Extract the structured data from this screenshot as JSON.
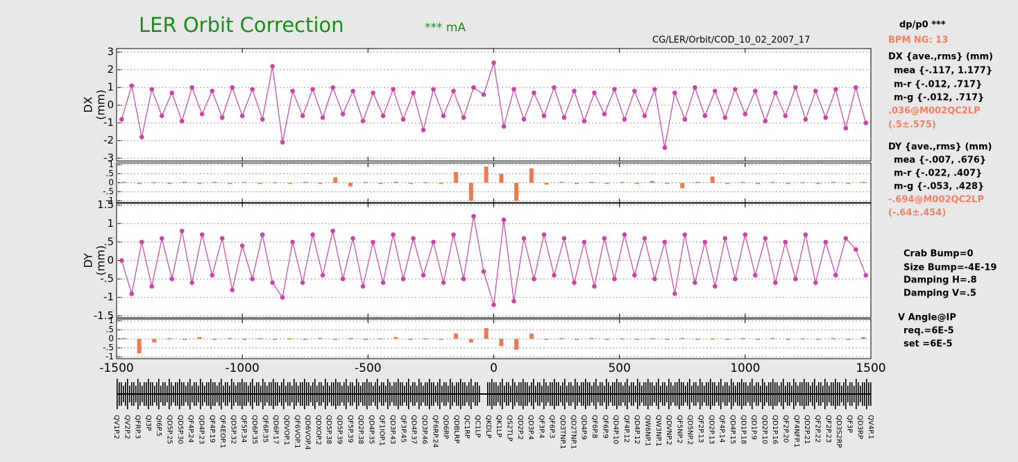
{
  "header": {
    "title": "LER Orbit Correction",
    "current": "*** mA",
    "file": "CG/LER/Orbit/COD_10_02_2007_17"
  },
  "side": [
    {
      "text": "dp/p0  ***",
      "color": "#000000"
    },
    {
      "text": "BPM  NG: 13",
      "color": "#f08060"
    },
    {
      "text": "DX {ave.,rms} (mm)",
      "color": "#000000"
    },
    {
      "text": "mea {-.117, 1.177}",
      "color": "#000000"
    },
    {
      "text": "m-r {-.012, .717}",
      "color": "#000000"
    },
    {
      "text": "m-g {-.012, .717}",
      "color": "#000000"
    },
    {
      "text": ".036@M002QC2LP",
      "color": "#f08060"
    },
    {
      "text": "(.5±.575)",
      "color": "#f08060"
    },
    {
      "text": "DY {ave.,rms} (mm)",
      "color": "#000000"
    },
    {
      "text": "mea {-.007, .676}",
      "color": "#000000"
    },
    {
      "text": "m-r {-.022, .407}",
      "color": "#000000"
    },
    {
      "text": "m-g {-.053, .428}",
      "color": "#000000"
    },
    {
      "text": "-.694@M002QC2LP",
      "color": "#f08060"
    },
    {
      "text": "(-.64±.454)",
      "color": "#f08060"
    },
    {
      "text": "Crab Bump=0",
      "color": "#000000"
    },
    {
      "text": "Size Bump=-4E-19",
      "color": "#000000"
    },
    {
      "text": "Damping H=.8",
      "color": "#000000"
    },
    {
      "text": "Damping V=.5",
      "color": "#000000"
    },
    {
      "text": "V Angle@IP",
      "color": "#000000"
    },
    {
      "text": "req.=6E-5",
      "color": "#000000"
    },
    {
      "text": "set =6E-5",
      "color": "#000000"
    }
  ],
  "elements": [
    "QV1P.2",
    "QV2P.2",
    "QFRP.3",
    "QI3P",
    "QI6P.5",
    "QD5P.25",
    "QD5P.30",
    "QF4P.24",
    "QD4P.23",
    "QF4P.19",
    "QF4EOP.1",
    "QD5P.32",
    "QF5P.34",
    "QD6P.35",
    "QF6P.35",
    "QD6P.17",
    "QDVOP.1",
    "QF6VOP.1",
    "QD6VOP.4",
    "QDXOP.2",
    "QD5P.38",
    "QD5P.39",
    "QF5P.39",
    "QD2P.38",
    "QD4P.35",
    "QF1IOP.1",
    "QD3P.43",
    "QF3P.45",
    "QD4P.37",
    "QD3P.46",
    "QF6RP.24",
    "QD6RP",
    "QDBLRP",
    "QC1RP",
    "QC1LP",
    "QKDLP",
    "QK1LP",
    "QS2TLP",
    "QD2P.2",
    "QD3P.4",
    "QF3P.4",
    "QF6P.3",
    "QD3TNP.1",
    "QD2TNP.1",
    "QD4P.9",
    "QF6P.8",
    "QF6P.9",
    "QD4P.10",
    "QF4P.12",
    "QD4P.12",
    "QW6NP.1",
    "QW3NP.1",
    "QDVNP.2",
    "QF5NP.2",
    "QD5NP.2",
    "QF2P.13",
    "QD2P.13",
    "QF4P.14",
    "QD4P.15",
    "QD1P.18",
    "QD1P.9",
    "QD2P.10",
    "QD1P.16",
    "QF2P.20",
    "QF4NFP.1",
    "QD2P.21",
    "QF2P.22",
    "QF2P.23",
    "QD3S2RP",
    "QF3P",
    "QD3RP",
    "QV4P.1"
  ],
  "chart_data": [
    {
      "type": "line",
      "ylabel": [
        "DX",
        "(mm)"
      ],
      "color": "#d040a8",
      "grid": true,
      "xlim": [
        -1500,
        1500
      ],
      "ylim": [
        -3.15,
        3.2
      ],
      "yticks": [
        3,
        2,
        1,
        0,
        -1,
        -2,
        -3
      ],
      "x": [
        -1480,
        -1440,
        -1400,
        -1360,
        -1320,
        -1280,
        -1240,
        -1200,
        -1160,
        -1120,
        -1080,
        -1040,
        -1000,
        -960,
        -920,
        -880,
        -840,
        -800,
        -760,
        -720,
        -680,
        -640,
        -600,
        -560,
        -520,
        -480,
        -440,
        -400,
        -360,
        -320,
        -280,
        -240,
        -200,
        -160,
        -120,
        -80,
        -40,
        0,
        40,
        80,
        120,
        160,
        200,
        240,
        280,
        320,
        360,
        400,
        440,
        480,
        520,
        560,
        600,
        640,
        680,
        720,
        760,
        800,
        840,
        880,
        920,
        960,
        1000,
        1040,
        1080,
        1120,
        1160,
        1200,
        1240,
        1280,
        1320,
        1360,
        1400,
        1440,
        1480
      ],
      "values": [
        -0.8,
        1.1,
        -1.8,
        0.9,
        -0.6,
        0.7,
        -0.9,
        1.0,
        -0.5,
        0.8,
        -0.7,
        1.0,
        -0.6,
        0.9,
        -0.8,
        2.2,
        -2.1,
        0.8,
        -0.6,
        0.9,
        -0.7,
        1.0,
        -0.5,
        0.8,
        -0.9,
        0.7,
        -0.6,
        0.9,
        -0.8,
        0.7,
        -1.4,
        0.9,
        -0.6,
        0.8,
        -0.7,
        1.0,
        0.6,
        2.4,
        -1.2,
        0.9,
        -0.8,
        0.7,
        -0.6,
        1.0,
        -0.7,
        0.8,
        -0.9,
        0.7,
        -0.5,
        0.9,
        -0.8,
        0.8,
        -0.6,
        0.9,
        -2.4,
        0.7,
        -0.8,
        1.0,
        -0.6,
        0.8,
        -0.7,
        0.9,
        -0.5,
        0.8,
        -0.9,
        0.7,
        -0.6,
        1.0,
        -0.8,
        0.8,
        -0.7,
        0.9,
        -1.3,
        1.0,
        -1.0
      ]
    },
    {
      "type": "bar",
      "color": "#f07a50",
      "grid": true,
      "xlim": [
        -1500,
        1500
      ],
      "ylim": [
        -1.1,
        1.1
      ],
      "yticks": [
        1,
        {
          "value": 0.5,
          "label": ".5"
        },
        0,
        {
          "value": -0.5,
          "label": "-.5"
        },
        -1
      ],
      "x": [
        -1470,
        -1410,
        -1350,
        -1290,
        -1230,
        -1170,
        -1110,
        -1050,
        -990,
        -930,
        -870,
        -810,
        -750,
        -690,
        -630,
        -570,
        -510,
        -450,
        -390,
        -330,
        -270,
        -210,
        -150,
        -90,
        -30,
        30,
        90,
        150,
        210,
        270,
        330,
        390,
        450,
        510,
        570,
        630,
        690,
        750,
        810,
        870,
        930,
        990,
        1050,
        1110,
        1170,
        1230,
        1290,
        1350,
        1410,
        1470
      ],
      "values": [
        0.05,
        -0.05,
        0.03,
        -0.04,
        0.06,
        -0.03,
        0.05,
        -0.06,
        0.04,
        -0.05,
        0.03,
        -0.05,
        0.05,
        -0.04,
        0.3,
        -0.2,
        0.04,
        -0.03,
        0.05,
        -0.04,
        0.03,
        -0.06,
        0.6,
        -1.0,
        0.9,
        0.5,
        -1.0,
        0.8,
        -0.1,
        0.05,
        -0.04,
        0.05,
        -0.03,
        0.04,
        -0.05,
        0.1,
        -0.04,
        -0.3,
        0.05,
        0.35,
        -0.04,
        0.05,
        -0.03,
        0.04,
        -0.05,
        0.03,
        -0.04,
        0.05,
        -0.03,
        0.05
      ]
    },
    {
      "type": "line",
      "ylabel": [
        "DY",
        "(mm)"
      ],
      "color": "#d040a8",
      "grid": true,
      "xlim": [
        -1500,
        1500
      ],
      "ylim": [
        -1.55,
        1.55
      ],
      "yticks": [
        1.5,
        1,
        {
          "value": 0.5,
          "label": ".5"
        },
        0,
        {
          "value": -0.5,
          "label": "-.5"
        },
        -1,
        -1.5
      ],
      "x": [
        -1480,
        -1440,
        -1400,
        -1360,
        -1320,
        -1280,
        -1240,
        -1200,
        -1160,
        -1120,
        -1080,
        -1040,
        -1000,
        -960,
        -920,
        -880,
        -840,
        -800,
        -760,
        -720,
        -680,
        -640,
        -600,
        -560,
        -520,
        -480,
        -440,
        -400,
        -360,
        -320,
        -280,
        -240,
        -200,
        -160,
        -120,
        -80,
        -40,
        0,
        40,
        80,
        120,
        160,
        200,
        240,
        280,
        320,
        360,
        400,
        440,
        480,
        520,
        560,
        600,
        640,
        680,
        720,
        760,
        800,
        840,
        880,
        920,
        960,
        1000,
        1040,
        1080,
        1120,
        1160,
        1200,
        1240,
        1280,
        1320,
        1360,
        1400,
        1440,
        1480
      ],
      "values": [
        0.0,
        -0.9,
        0.5,
        -0.7,
        0.6,
        -0.5,
        0.8,
        -0.6,
        0.7,
        -0.4,
        0.6,
        -0.8,
        0.4,
        -0.5,
        0.7,
        -0.6,
        -1.0,
        0.5,
        -0.6,
        0.7,
        -0.4,
        0.8,
        -0.5,
        0.6,
        -0.7,
        0.5,
        -0.6,
        0.7,
        -0.5,
        0.6,
        -0.4,
        0.5,
        -0.6,
        0.7,
        -0.5,
        1.2,
        -0.3,
        -1.2,
        1.1,
        -1.1,
        0.6,
        -0.5,
        0.7,
        -0.4,
        0.6,
        -0.6,
        0.5,
        -0.7,
        0.6,
        -0.5,
        0.7,
        -0.4,
        0.6,
        -0.5,
        0.5,
        -0.9,
        0.7,
        -0.6,
        0.5,
        -0.7,
        0.6,
        -0.5,
        0.7,
        -0.4,
        0.6,
        -0.6,
        0.5,
        -0.5,
        0.7,
        -0.6,
        0.5,
        -0.4,
        0.6,
        0.3,
        -0.4
      ]
    },
    {
      "type": "bar",
      "color": "#f07a50",
      "grid": true,
      "xlim": [
        -1500,
        1500
      ],
      "ylim": [
        -1.1,
        1.1
      ],
      "yticks": [
        1,
        {
          "value": 0.5,
          "label": ".5"
        },
        0,
        {
          "value": -0.5,
          "label": "-.5"
        },
        -1
      ],
      "xticks": [
        -1500,
        -1000,
        -500,
        0,
        500,
        1000,
        1500
      ],
      "x": [
        -1470,
        -1410,
        -1350,
        -1290,
        -1230,
        -1170,
        -1110,
        -1050,
        -990,
        -930,
        -870,
        -810,
        -750,
        -690,
        -630,
        -570,
        -510,
        -450,
        -390,
        -330,
        -270,
        -210,
        -150,
        -90,
        -30,
        30,
        90,
        150,
        210,
        270,
        330,
        390,
        450,
        510,
        570,
        630,
        690,
        750,
        810,
        870,
        930,
        990,
        1050,
        1110,
        1170,
        1230,
        1290,
        1350,
        1410,
        1470
      ],
      "values": [
        0.05,
        -0.8,
        -0.2,
        0.04,
        -0.03,
        0.1,
        -0.04,
        0.05,
        -0.03,
        0.04,
        -0.05,
        0.03,
        -0.04,
        0.05,
        -0.03,
        0.04,
        -0.05,
        0.03,
        0.1,
        -0.04,
        0.03,
        -0.05,
        0.3,
        -0.2,
        0.6,
        -0.4,
        -0.6,
        0.3,
        -0.05,
        0.04,
        -0.03,
        0.05,
        -0.04,
        0.03,
        -0.05,
        0.04,
        -0.03,
        0.05,
        -0.04,
        0.03,
        -0.05,
        0.04,
        -0.03,
        0.05,
        -0.04,
        0.03,
        -0.05,
        0.04,
        -0.03,
        0.1
      ]
    }
  ]
}
